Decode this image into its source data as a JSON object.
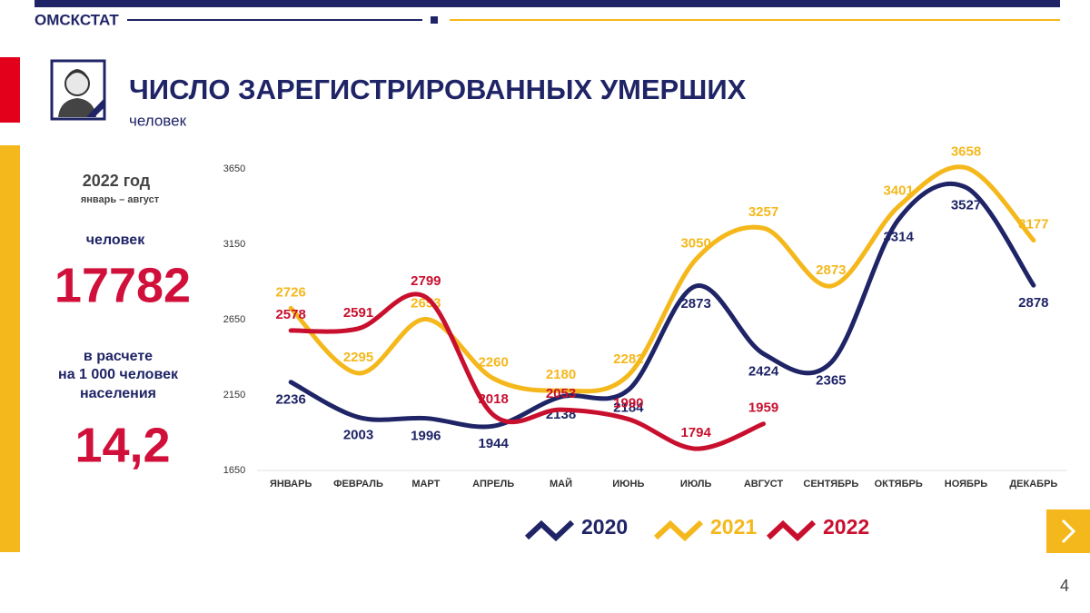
{
  "header": {
    "brand": "ОМСКСТАТ"
  },
  "sidebar": {
    "period_year": "2022 год",
    "period_months": "январь – август",
    "unit": "человек",
    "total": "17782",
    "rate_caption": [
      "в расчете",
      "на 1 000 человек",
      "населения"
    ],
    "rate": "14,2"
  },
  "page_number": "4",
  "chart_data": {
    "type": "line",
    "title": "ЧИСЛО ЗАРЕГИСТРИРОВАННЫХ УМЕРШИХ",
    "subtitle": "человек",
    "categories": [
      "ЯНВАРЬ",
      "ФЕВРАЛЬ",
      "МАРТ",
      "АПРЕЛЬ",
      "МАЙ",
      "ИЮНЬ",
      "ИЮЛЬ",
      "АВГУСТ",
      "СЕНТЯБРЬ",
      "ОКТЯБРЬ",
      "НОЯБРЬ",
      "ДЕКАБРЬ"
    ],
    "series": [
      {
        "name": "2020",
        "color": "#1f2466",
        "values": [
          2236,
          2003,
          1996,
          1944,
          2138,
          2184,
          2873,
          2424,
          2365,
          3314,
          3527,
          2878
        ]
      },
      {
        "name": "2021",
        "color": "#f5b81c",
        "values": [
          2726,
          2295,
          2653,
          2260,
          2180,
          2282,
          3050,
          3257,
          2873,
          3401,
          3658,
          3177
        ]
      },
      {
        "name": "2022",
        "color": "#c8102e",
        "values": [
          2578,
          2591,
          2799,
          2018,
          2053,
          1990,
          1794,
          1959,
          null,
          null,
          null,
          null
        ]
      }
    ],
    "ylim": [
      1650,
      3650
    ],
    "yticks": [
      1650,
      2150,
      2650,
      3150,
      3650
    ],
    "grid": false
  }
}
